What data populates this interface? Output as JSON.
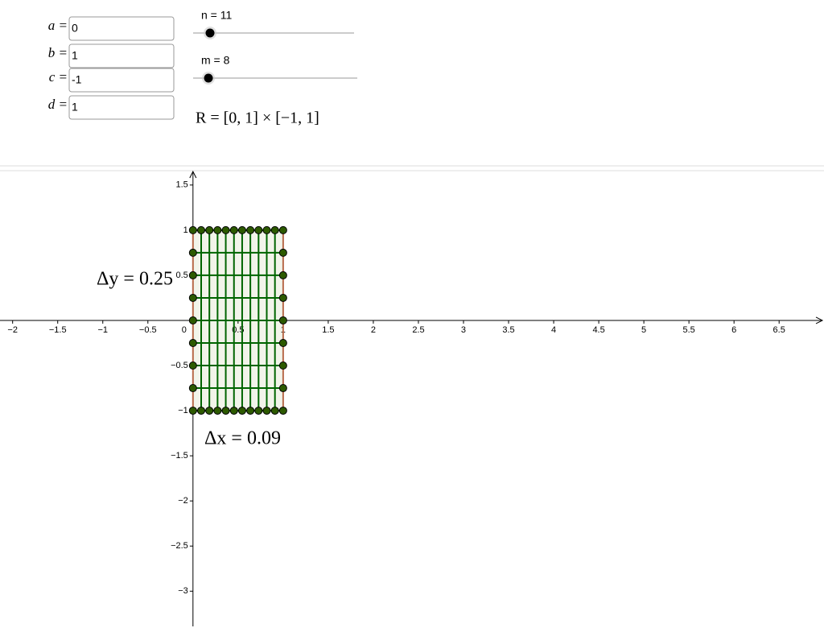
{
  "inputs": [
    {
      "label": "a =",
      "value": "0"
    },
    {
      "label": "b =",
      "value": "1"
    },
    {
      "label": "c =",
      "value": "-1"
    },
    {
      "label": "d =",
      "value": "1"
    }
  ],
  "sliders": [
    {
      "value": 11,
      "label": "n = 11"
    },
    {
      "value": 8,
      "label": "m = 8"
    }
  ],
  "region_label": "R = [0, 1] × [−1, 1]",
  "graph": {
    "xlim": [
      -2.14,
      6.98
    ],
    "ylim": [
      -3.39,
      1.65
    ],
    "xticks": [
      {
        "value": -2,
        "label": "−2"
      },
      {
        "value": -1.5,
        "label": "−1.5"
      },
      {
        "value": -1,
        "label": "−1"
      },
      {
        "value": -0.5,
        "label": "−0.5"
      },
      0,
      0.5,
      1,
      1.5,
      2,
      2.5,
      3,
      3.5,
      4,
      4.5,
      5,
      5.5,
      6,
      6.5
    ],
    "yticks": [
      1.5,
      1,
      0.5,
      {
        "value": -0.5,
        "label": "−0.5"
      },
      {
        "value": -1,
        "label": "−1"
      },
      {
        "value": -1.5,
        "label": "−1.5"
      },
      {
        "value": -2,
        "label": "−2"
      },
      {
        "value": -2.5,
        "label": "−2.5"
      },
      {
        "value": -3,
        "label": "−3"
      }
    ],
    "annotations": [
      "Δy = 0.25",
      "Δx = 0.09"
    ]
  }
}
